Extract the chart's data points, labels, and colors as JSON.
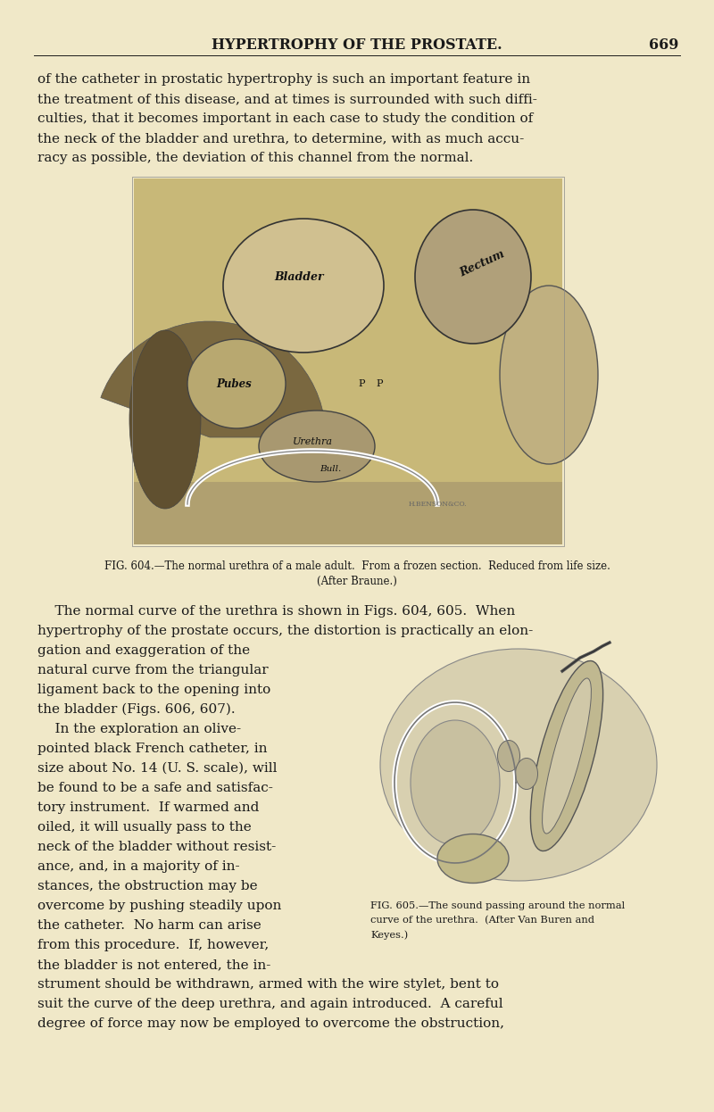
{
  "background_color": "#f0e8c8",
  "page_width": 8.0,
  "page_height": 12.46,
  "dpi": 100,
  "header_title": "HYPERTROPHY OF THE PROSTATE.",
  "header_page": "669",
  "body_text_color": "#1a1a1a",
  "top_paragraph_lines": [
    "of the catheter in prostatic hypertrophy is such an important feature in",
    "the treatment of this disease, and at times is surrounded with such diffi-",
    "culties, that it becomes important in each case to study the condition of",
    "the neck of the bladder and urethra, to determine, with as much accu-",
    "racy as possible, the deviation of this channel from the normal."
  ],
  "fig604_caption_line1": "FIG. 604.—The normal urethra of a male adult.  From a frozen section.  Reduced from life size.",
  "fig604_caption_line2": "(After Braune.)",
  "full_width_lines": [
    "    The normal curve of the urethra is shown in Figs. 604, 605.  When",
    "hypertrophy of the prostate occurs, the distortion is practically an elon-"
  ],
  "left_col_lines": [
    "gation and exaggeration of the",
    "natural curve from the triangular",
    "ligament back to the opening into",
    "the bladder (Figs. 606, 607).",
    "    In the exploration an olive-",
    "pointed black French catheter, in",
    "size about No. 14 (U. S. scale), will",
    "be found to be a safe and satisfac-",
    "tory instrument.  If warmed and",
    "oiled, it will usually pass to the",
    "neck of the bladder without resist-",
    "ance, and, in a majority of in-",
    "stances, the obstruction may be",
    "overcome by pushing steadily upon",
    "the catheter.  No harm can arise",
    "from this procedure.  If, however,",
    "the bladder is not entered, the in-"
  ],
  "fig605_caption_lines": [
    "FIG. 605.—The sound passing around the normal",
    "curve of the urethra.  (After Van Buren and",
    "Keyes.)"
  ],
  "bottom_lines": [
    "strument should be withdrawn, armed with the wire stylet, bent to",
    "suit the curve of the deep urethra, and again introduced.  A careful",
    "degree of force may now be employed to overcome the obstruction,"
  ]
}
